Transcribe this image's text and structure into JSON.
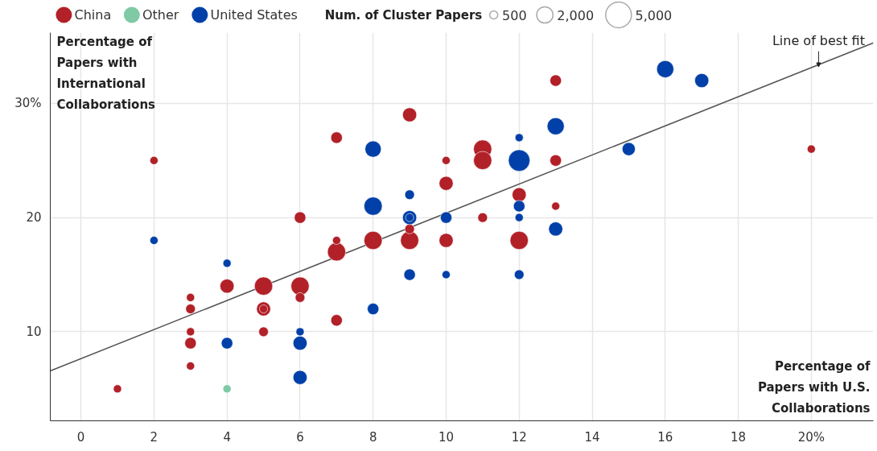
{
  "chart_data": {
    "type": "bubble",
    "xlabel": "Percentage of Papers with U.S. Collaborations",
    "ylabel": "Percentage of Papers with International Collaborations",
    "legend_title": "Num. of Cluster Papers",
    "size_legend": [
      500,
      {
        "value": 2000,
        "label": "2,000"
      },
      {
        "value": 5000,
        "label": "5,000"
      }
    ],
    "xlim": [
      -0.84,
      21.7
    ],
    "ylim": [
      2.2,
      36.2
    ],
    "xticks": [
      0,
      2,
      4,
      6,
      8,
      10,
      12,
      14,
      16,
      18,
      {
        "value": 20,
        "label": "20%"
      }
    ],
    "yticks": [
      10,
      20,
      {
        "value": 30,
        "label": "30%"
      }
    ],
    "grid": true,
    "legend": "top left",
    "annotations": [
      {
        "text": "Line of best fit",
        "x": 20.2,
        "y": 33.2
      }
    ],
    "series": [
      {
        "name": "China",
        "color": "#b22028",
        "x": [
          1,
          2,
          3,
          3,
          3,
          3,
          3,
          4,
          5,
          5,
          5,
          5,
          6,
          6,
          6,
          7,
          7,
          7,
          7,
          8,
          9,
          9,
          9,
          10,
          10,
          10,
          11,
          11,
          11,
          12,
          12,
          13,
          13,
          13,
          20
        ],
        "values": [
          5,
          25,
          13,
          12,
          10,
          9,
          7,
          14,
          14,
          12,
          12,
          10,
          20,
          14,
          13,
          27,
          18,
          17,
          11,
          18,
          29,
          19,
          18,
          25,
          23,
          18,
          26,
          25,
          20,
          22,
          18,
          32,
          25,
          21,
          26
        ],
        "sizes": [
          500,
          500,
          500,
          700,
          500,
          1000,
          500,
          1500,
          2500,
          500,
          1500,
          700,
          1000,
          2500,
          700,
          1000,
          500,
          2500,
          1000,
          2500,
          1500,
          700,
          2500,
          500,
          1500,
          1500,
          2500,
          2500,
          700,
          1500,
          2500,
          1000,
          1000,
          500,
          500
        ]
      },
      {
        "name": "Other",
        "color": "#7fc9a5",
        "x": [
          4
        ],
        "values": [
          5
        ],
        "sizes": [
          500
        ]
      },
      {
        "name": "United States",
        "color": "#0040a8",
        "x": [
          2,
          4,
          4,
          6,
          6,
          6,
          8,
          8,
          8,
          9,
          9,
          9,
          9,
          10,
          10,
          12,
          12,
          12,
          12,
          12,
          13,
          13,
          15,
          16,
          17
        ],
        "values": [
          18,
          16,
          9,
          10,
          9,
          6,
          26,
          21,
          12,
          22,
          20,
          20,
          15,
          20,
          15,
          27,
          25,
          21,
          20,
          15,
          28,
          19,
          26,
          33,
          32
        ],
        "sizes": [
          500,
          500,
          1000,
          500,
          1500,
          1500,
          2000,
          2500,
          1000,
          700,
          500,
          1500,
          1000,
          1000,
          500,
          500,
          3500,
          1000,
          500,
          700,
          2200,
          1500,
          1300,
          2200,
          1500
        ]
      },
      {
        "type": "line",
        "color": "#555555",
        "x": [
          -0.84,
          21.7
        ],
        "values": [
          6.57,
          35.3
        ]
      }
    ]
  }
}
